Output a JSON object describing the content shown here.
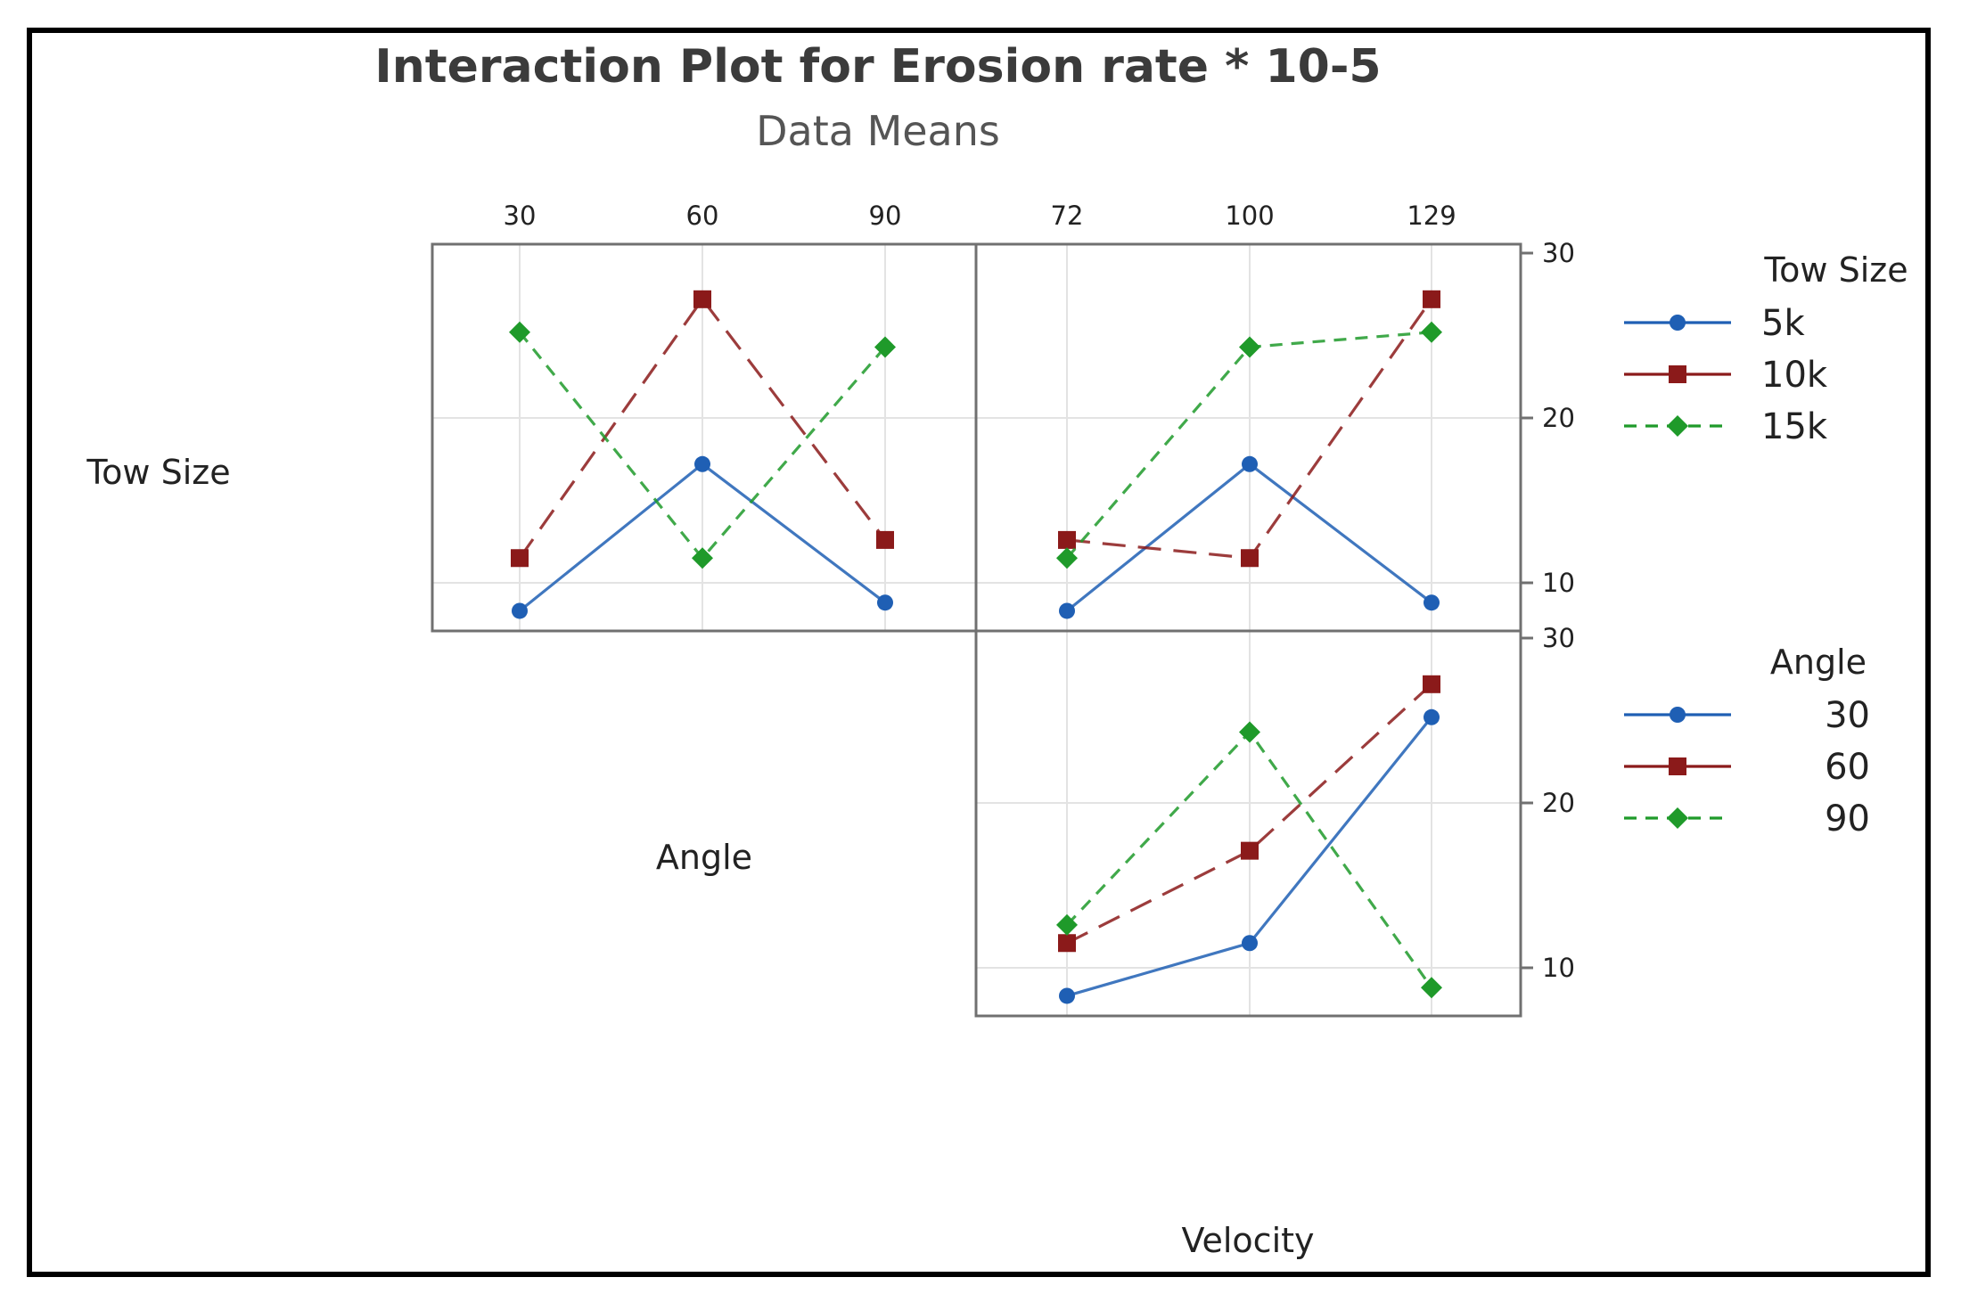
{
  "chart_data": {
    "type": "line",
    "title": "Interaction Plot for Erosion rate * 10-5",
    "subtitle": "Data Means",
    "row_labels": [
      "Tow Size",
      "Angle"
    ],
    "xlabel": "Velocity",
    "ylim": [
      7,
      30
    ],
    "y_ticks": [
      10,
      20,
      30
    ],
    "grid": true,
    "panels": [
      {
        "id": "towsize-by-angle",
        "row": 0,
        "col": 0,
        "x_factor": "Angle",
        "categories": [
          "30",
          "60",
          "90"
        ],
        "trace_factor": "Tow Size",
        "series": [
          {
            "name": "5k",
            "values": [
              8.3,
              17.2,
              8.8
            ]
          },
          {
            "name": "10k",
            "values": [
              11.5,
              27.2,
              12.6
            ]
          },
          {
            "name": "15k",
            "values": [
              25.2,
              11.5,
              24.3
            ]
          }
        ]
      },
      {
        "id": "towsize-by-velocity",
        "row": 0,
        "col": 1,
        "x_factor": "Velocity",
        "categories": [
          "72",
          "100",
          "129"
        ],
        "trace_factor": "Tow Size",
        "series": [
          {
            "name": "5k",
            "values": [
              8.3,
              17.2,
              8.8
            ]
          },
          {
            "name": "10k",
            "values": [
              12.6,
              11.5,
              27.2
            ]
          },
          {
            "name": "15k",
            "values": [
              11.5,
              24.3,
              25.2
            ]
          }
        ]
      },
      {
        "id": "angle-by-velocity",
        "row": 1,
        "col": 1,
        "x_factor": "Velocity",
        "categories": [
          "72",
          "100",
          "129"
        ],
        "trace_factor": "Angle",
        "series": [
          {
            "name": "30",
            "values": [
              8.3,
              11.5,
              25.2
            ]
          },
          {
            "name": "60",
            "values": [
              11.5,
              17.1,
              27.2
            ]
          },
          {
            "name": "90",
            "values": [
              12.6,
              24.3,
              8.8
            ]
          }
        ]
      }
    ],
    "legends": [
      {
        "title": "Tow Size",
        "items": [
          "5k",
          "10k",
          "15k"
        ]
      },
      {
        "title": "Angle",
        "items": [
          "30",
          "60",
          "90"
        ]
      }
    ],
    "series_style": [
      {
        "color": "#1f5fb4",
        "marker": "circle",
        "dash": "solid"
      },
      {
        "color": "#8b1a1a",
        "marker": "square",
        "dash": "long-dash"
      },
      {
        "color": "#1f9a2a",
        "marker": "diamond",
        "dash": "short-dash"
      }
    ]
  }
}
